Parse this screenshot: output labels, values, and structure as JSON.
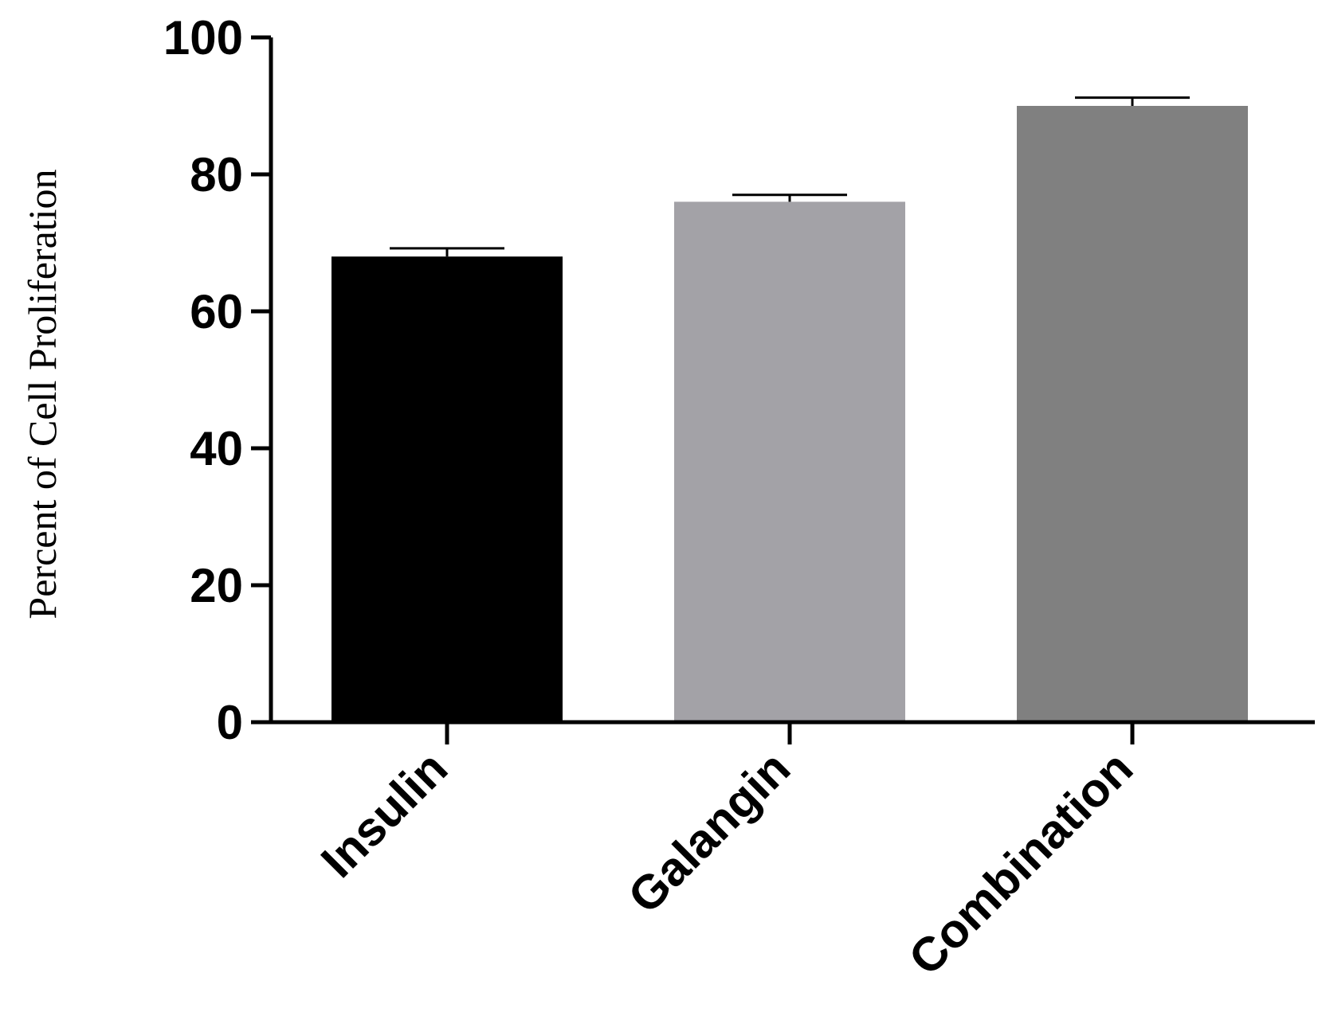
{
  "chart_data": {
    "type": "bar",
    "title": "",
    "xlabel": "",
    "ylabel": "Percent of Cell Proliferation",
    "categories": [
      "Insulin",
      "Galangin",
      "Combination"
    ],
    "values": [
      68,
      76,
      90
    ],
    "error": [
      1.2,
      1.0,
      1.2
    ],
    "colors": [
      "#000000",
      "#a3a2a7",
      "#808080"
    ],
    "ylim": [
      0,
      100
    ],
    "yticks": [
      0,
      20,
      40,
      60,
      80,
      100
    ],
    "grid": false,
    "legend": "none"
  }
}
